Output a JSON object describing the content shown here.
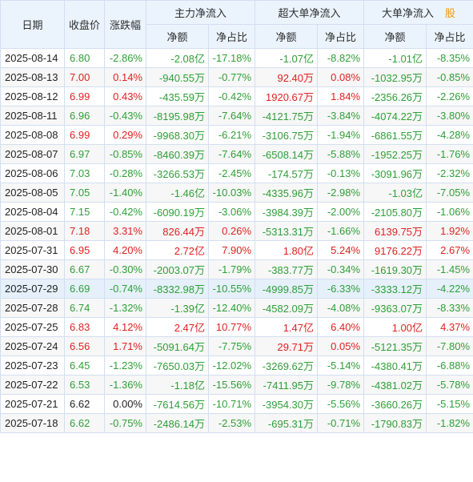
{
  "header": {
    "date": "日期",
    "close": "收盘价",
    "change": "涨跌幅",
    "main_flow": "主力净流入",
    "xl_flow": "超大单净流入",
    "l_flow": "大单净流入",
    "corner": "股",
    "net_amount": "净额",
    "net_ratio": "净占比"
  },
  "colors": {
    "up": "#e02020",
    "down": "#2e9f37",
    "header_bg": "#ebf4fd",
    "border": "#d2dff0"
  },
  "rows": [
    {
      "date": "2025-08-14",
      "close": "6.80",
      "change": "-2.86%",
      "main_amt": "-2.08亿",
      "main_pct": "-17.18%",
      "xl_amt": "-1.07亿",
      "xl_pct": "-8.82%",
      "l_amt": "-1.01亿",
      "l_pct": "-8.35%"
    },
    {
      "date": "2025-08-13",
      "close": "7.00",
      "change": "0.14%",
      "main_amt": "-940.55万",
      "main_pct": "-0.77%",
      "xl_amt": "92.40万",
      "xl_pct": "0.08%",
      "l_amt": "-1032.95万",
      "l_pct": "-0.85%"
    },
    {
      "date": "2025-08-12",
      "close": "6.99",
      "change": "0.43%",
      "main_amt": "-435.59万",
      "main_pct": "-0.42%",
      "xl_amt": "1920.67万",
      "xl_pct": "1.84%",
      "l_amt": "-2356.26万",
      "l_pct": "-2.26%"
    },
    {
      "date": "2025-08-11",
      "close": "6.96",
      "change": "-0.43%",
      "main_amt": "-8195.98万",
      "main_pct": "-7.64%",
      "xl_amt": "-4121.75万",
      "xl_pct": "-3.84%",
      "l_amt": "-4074.22万",
      "l_pct": "-3.80%"
    },
    {
      "date": "2025-08-08",
      "close": "6.99",
      "change": "0.29%",
      "main_amt": "-9968.30万",
      "main_pct": "-6.21%",
      "xl_amt": "-3106.75万",
      "xl_pct": "-1.94%",
      "l_amt": "-6861.55万",
      "l_pct": "-4.28%"
    },
    {
      "date": "2025-08-07",
      "close": "6.97",
      "change": "-0.85%",
      "main_amt": "-8460.39万",
      "main_pct": "-7.64%",
      "xl_amt": "-6508.14万",
      "xl_pct": "-5.88%",
      "l_amt": "-1952.25万",
      "l_pct": "-1.76%"
    },
    {
      "date": "2025-08-06",
      "close": "7.03",
      "change": "-0.28%",
      "main_amt": "-3266.53万",
      "main_pct": "-2.45%",
      "xl_amt": "-174.57万",
      "xl_pct": "-0.13%",
      "l_amt": "-3091.96万",
      "l_pct": "-2.32%"
    },
    {
      "date": "2025-08-05",
      "close": "7.05",
      "change": "-1.40%",
      "main_amt": "-1.46亿",
      "main_pct": "-10.03%",
      "xl_amt": "-4335.96万",
      "xl_pct": "-2.98%",
      "l_amt": "-1.03亿",
      "l_pct": "-7.05%"
    },
    {
      "date": "2025-08-04",
      "close": "7.15",
      "change": "-0.42%",
      "main_amt": "-6090.19万",
      "main_pct": "-3.06%",
      "xl_amt": "-3984.39万",
      "xl_pct": "-2.00%",
      "l_amt": "-2105.80万",
      "l_pct": "-1.06%"
    },
    {
      "date": "2025-08-01",
      "close": "7.18",
      "change": "3.31%",
      "main_amt": "826.44万",
      "main_pct": "0.26%",
      "xl_amt": "-5313.31万",
      "xl_pct": "-1.66%",
      "l_amt": "6139.75万",
      "l_pct": "1.92%"
    },
    {
      "date": "2025-07-31",
      "close": "6.95",
      "change": "4.20%",
      "main_amt": "2.72亿",
      "main_pct": "7.90%",
      "xl_amt": "1.80亿",
      "xl_pct": "5.24%",
      "l_amt": "9176.22万",
      "l_pct": "2.67%"
    },
    {
      "date": "2025-07-30",
      "close": "6.67",
      "change": "-0.30%",
      "main_amt": "-2003.07万",
      "main_pct": "-1.79%",
      "xl_amt": "-383.77万",
      "xl_pct": "-0.34%",
      "l_amt": "-1619.30万",
      "l_pct": "-1.45%"
    },
    {
      "date": "2025-07-29",
      "close": "6.69",
      "change": "-0.74%",
      "main_amt": "-8332.98万",
      "main_pct": "-10.55%",
      "xl_amt": "-4999.85万",
      "xl_pct": "-6.33%",
      "l_amt": "-3333.12万",
      "l_pct": "-4.22%"
    },
    {
      "date": "2025-07-28",
      "close": "6.74",
      "change": "-1.32%",
      "main_amt": "-1.39亿",
      "main_pct": "-12.40%",
      "xl_amt": "-4582.09万",
      "xl_pct": "-4.08%",
      "l_amt": "-9363.07万",
      "l_pct": "-8.33%"
    },
    {
      "date": "2025-07-25",
      "close": "6.83",
      "change": "4.12%",
      "main_amt": "2.47亿",
      "main_pct": "10.77%",
      "xl_amt": "1.47亿",
      "xl_pct": "6.40%",
      "l_amt": "1.00亿",
      "l_pct": "4.37%"
    },
    {
      "date": "2025-07-24",
      "close": "6.56",
      "change": "1.71%",
      "main_amt": "-5091.64万",
      "main_pct": "-7.75%",
      "xl_amt": "29.71万",
      "xl_pct": "0.05%",
      "l_amt": "-5121.35万",
      "l_pct": "-7.80%"
    },
    {
      "date": "2025-07-23",
      "close": "6.45",
      "change": "-1.23%",
      "main_amt": "-7650.03万",
      "main_pct": "-12.02%",
      "xl_amt": "-3269.62万",
      "xl_pct": "-5.14%",
      "l_amt": "-4380.41万",
      "l_pct": "-6.88%"
    },
    {
      "date": "2025-07-22",
      "close": "6.53",
      "change": "-1.36%",
      "main_amt": "-1.18亿",
      "main_pct": "-15.56%",
      "xl_amt": "-7411.95万",
      "xl_pct": "-9.78%",
      "l_amt": "-4381.02万",
      "l_pct": "-5.78%"
    },
    {
      "date": "2025-07-21",
      "close": "6.62",
      "change": "0.00%",
      "main_amt": "-7614.56万",
      "main_pct": "-10.71%",
      "xl_amt": "-3954.30万",
      "xl_pct": "-5.56%",
      "l_amt": "-3660.26万",
      "l_pct": "-5.15%"
    },
    {
      "date": "2025-07-18",
      "close": "6.62",
      "change": "-0.75%",
      "main_amt": "-2486.14万",
      "main_pct": "-2.53%",
      "xl_amt": "-695.31万",
      "xl_pct": "-0.71%",
      "l_amt": "-1790.83万",
      "l_pct": "-1.82%"
    }
  ]
}
